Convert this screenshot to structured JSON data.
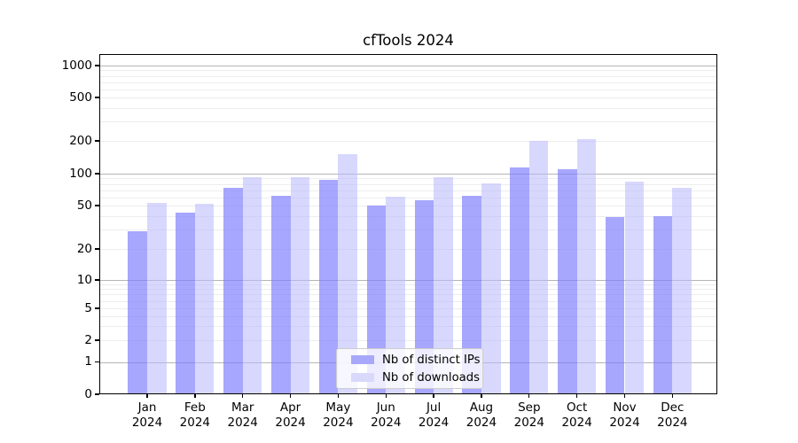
{
  "title": "cfTools 2024",
  "legend": {
    "items": [
      {
        "label": "Nb of distinct IPs",
        "color": "#a8a8fa"
      },
      {
        "label": "Nb of downloads",
        "color": "#d9d9fb"
      }
    ],
    "position": "lower center"
  },
  "chart_data": {
    "type": "bar",
    "title": "cfTools 2024",
    "categories": [
      "Jan 2024",
      "Feb 2024",
      "Mar 2024",
      "Apr 2024",
      "May 2024",
      "Jun 2024",
      "Jul 2024",
      "Aug 2024",
      "Sep 2024",
      "Oct 2024",
      "Nov 2024",
      "Dec 2024"
    ],
    "months": [
      {
        "month": "Jan",
        "year": "2024"
      },
      {
        "month": "Feb",
        "year": "2024"
      },
      {
        "month": "Mar",
        "year": "2024"
      },
      {
        "month": "Apr",
        "year": "2024"
      },
      {
        "month": "May",
        "year": "2024"
      },
      {
        "month": "Jun",
        "year": "2024"
      },
      {
        "month": "Jul",
        "year": "2024"
      },
      {
        "month": "Aug",
        "year": "2024"
      },
      {
        "month": "Sep",
        "year": "2024"
      },
      {
        "month": "Oct",
        "year": "2024"
      },
      {
        "month": "Nov",
        "year": "2024"
      },
      {
        "month": "Dec",
        "year": "2024"
      }
    ],
    "series": [
      {
        "name": "Nb of distinct IPs",
        "color": "#a8a8fa",
        "values": [
          29,
          43,
          74,
          62,
          88,
          50,
          56,
          62,
          115,
          110,
          39,
          40
        ]
      },
      {
        "name": "Nb of downloads",
        "color": "#d9d9fb",
        "values": [
          53,
          52,
          92,
          93,
          150,
          61,
          93,
          81,
          200,
          206,
          84,
          74
        ]
      }
    ],
    "yscale": "symlog",
    "yticks": [
      {
        "value": 0,
        "label": "0"
      },
      {
        "value": 1,
        "label": "1"
      },
      {
        "value": 2,
        "label": "2"
      },
      {
        "value": 5,
        "label": "5"
      },
      {
        "value": 10,
        "label": "10"
      },
      {
        "value": 20,
        "label": "20"
      },
      {
        "value": 50,
        "label": "50"
      },
      {
        "value": 100,
        "label": "100"
      },
      {
        "value": 200,
        "label": "200"
      },
      {
        "value": 500,
        "label": "500"
      },
      {
        "value": 1000,
        "label": "1000"
      }
    ],
    "ylim": [
      0,
      1300
    ],
    "grid": true,
    "xlabel": "",
    "ylabel": ""
  }
}
